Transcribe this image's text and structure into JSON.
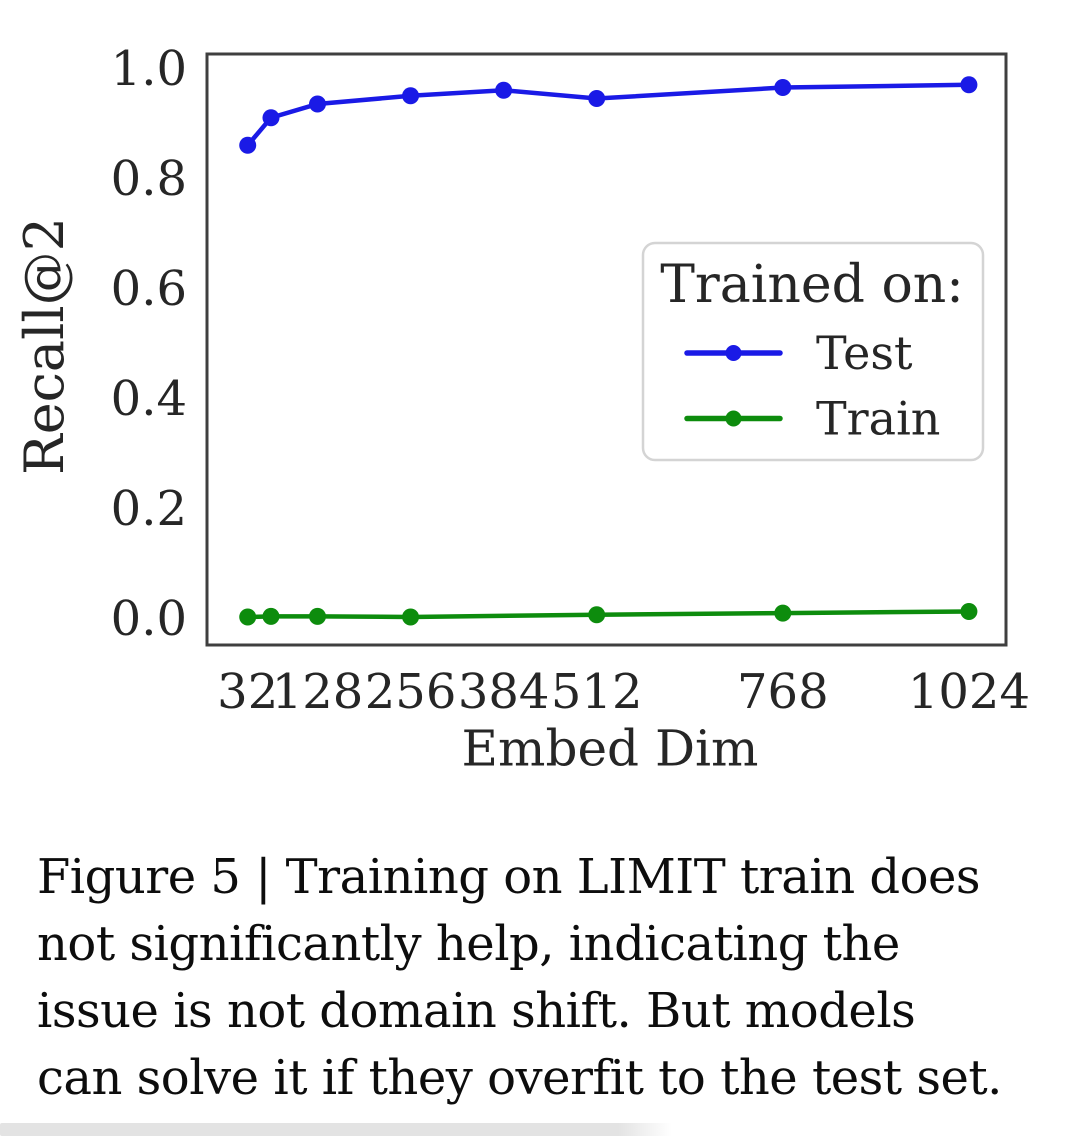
{
  "chart_data": {
    "type": "line",
    "title": "",
    "xlabel": "Embed Dim",
    "ylabel": "Recall@2",
    "x_ticks": [
      32,
      128,
      256,
      384,
      512,
      768,
      1024
    ],
    "y_ticks": [
      0.0,
      0.2,
      0.4,
      0.6,
      0.8,
      1.0
    ],
    "xlim": [
      -24,
      1075
    ],
    "ylim": [
      -0.049,
      1.026
    ],
    "grid": false,
    "legend": {
      "title": "Trained on:",
      "position": "center-right",
      "entries": [
        {
          "label": "Test",
          "color": "#1a1ae6"
        },
        {
          "label": "Train",
          "color": "#0d8c0d"
        }
      ]
    },
    "series": [
      {
        "name": "Test",
        "color": "#1a1ae6",
        "x": [
          32,
          64,
          128,
          256,
          384,
          512,
          768,
          1024
        ],
        "y": [
          0.86,
          0.91,
          0.935,
          0.95,
          0.96,
          0.945,
          0.965,
          0.97
        ]
      },
      {
        "name": "Train",
        "color": "#0d8c0d",
        "x": [
          32,
          64,
          128,
          256,
          512,
          768,
          1024
        ],
        "y": [
          0.002,
          0.003,
          0.003,
          0.002,
          0.006,
          0.009,
          0.012
        ]
      }
    ]
  },
  "colors": {
    "axis_text": "#262626",
    "spine": "#3f3f3f",
    "legend_border": "#d4d4d4",
    "caption_text": "#0d0d0d"
  },
  "caption": {
    "lines": [
      "Figure 5 | Training on LIMIT train does",
      "not significantly help, indicating the",
      "issue is not domain shift. But models",
      "can solve it if they overfit to the test set."
    ]
  }
}
